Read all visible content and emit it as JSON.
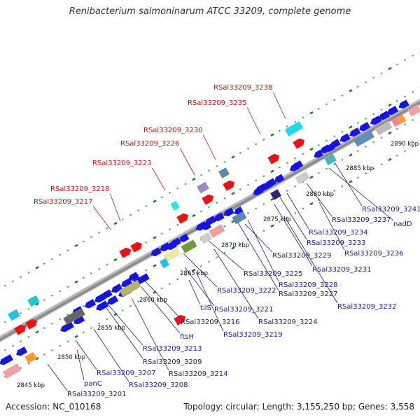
{
  "title": "Renibacterium salmoninarum ATCC 33209, complete genome",
  "footer": {
    "accession": "Accession: NC_010168",
    "summary": "Topology: circular; Length: 3,155,250 bp; Genes: 3,558"
  },
  "scale_labels": [
    "2845 kbp",
    "2850 kbp",
    "2855 kbp",
    "2860 kbp",
    "2865 kbp",
    "2870 kbp",
    "2875 kbp",
    "2880 kbp",
    "2885 kbp",
    "2890 kbp"
  ],
  "red_labels": [
    "RSal33209_3238",
    "RSal33209_3235",
    "RSal33209_3230",
    "RSal33209_3226",
    "RSal33209_3223",
    "RSal33209_3218",
    "RSal33209_3217"
  ],
  "blue_labels": [
    "RSal33209_3241",
    "nadD",
    "RSal33209_3237",
    "RSal33209_3234",
    "RSal33209_3233",
    "RSal33209_3236",
    "RSal33209_3229",
    "RSal33209_3231",
    "RSal33209_3225",
    "RSal33209_3228",
    "RSal33209_3222",
    "RSal33209_3227",
    "RSal33209_3232",
    "tilS",
    "RSal33209_3221",
    "RSal33209_3216",
    "RSal33209_3224",
    "RSal33209_3219",
    "ftsH",
    "RSal33209_3213",
    "RSal33209_3209",
    "RSal33209_3214",
    "RSal33209_3207",
    "panC",
    "RSal33209_3208",
    "RSal33209_3201"
  ],
  "colors": {
    "red_feature": "#ee1111",
    "blue_feature": "#1414e6",
    "backbone": "#8c8c8c",
    "tick_dark": "#1a7a1a",
    "tick_light": "#4aa84a",
    "red_label": "#cc1111",
    "blue_label": "#1a1a99"
  }
}
